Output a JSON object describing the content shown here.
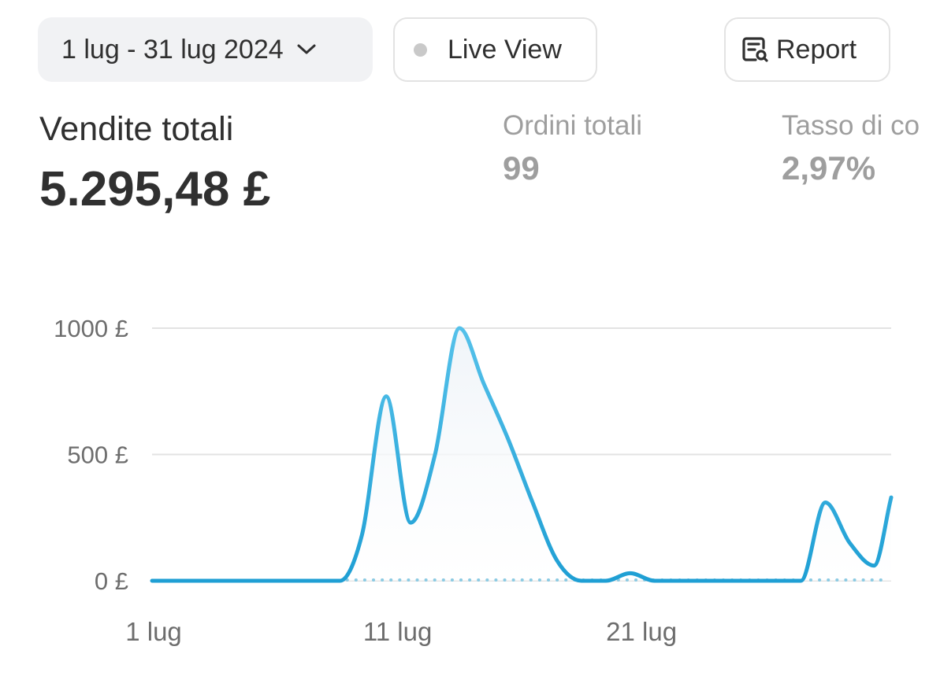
{
  "toolbar": {
    "date_range_label": "1 lug - 31 lug 2024",
    "live_view_label": "Live View",
    "report_label": "Report"
  },
  "metrics": [
    {
      "label": "Vendite totali",
      "value": "5.295,48 £"
    },
    {
      "label": "Ordini totali",
      "value": "99"
    },
    {
      "label": "Tasso di co",
      "value": "2,97%"
    }
  ],
  "colors": {
    "line": "#1f9fd4",
    "line_light": "#55c1ea",
    "comparison_dots": "#8ccbe3",
    "gridline": "#e3e3e3"
  },
  "chart_data": {
    "type": "line",
    "y_tick_labels": [
      "1000 £",
      "500 £",
      "0 £"
    ],
    "y_ticks": [
      1000,
      500,
      0
    ],
    "ylim": [
      0,
      1000
    ],
    "x_tick_labels": [
      "1 lug",
      "11 lug",
      "21 lug"
    ],
    "x_ticks": [
      1,
      11,
      21
    ],
    "xlim": [
      1,
      31.3
    ],
    "grid": true,
    "series": [
      {
        "x": [
          1,
          2,
          3,
          4,
          5,
          6,
          7,
          8,
          8.7,
          9.6,
          10.6,
          11.6,
          12.6,
          13.6,
          14.6,
          15.6,
          16.6,
          17.6,
          18.6,
          19.6,
          20.6,
          21.6,
          22.6,
          23.6,
          24.6,
          25.6,
          26.6,
          27.6,
          28.6,
          29.6,
          30.6,
          31.3
        ],
        "values": [
          0,
          0,
          0,
          0,
          0,
          0,
          0,
          0,
          0,
          180,
          730,
          230,
          500,
          1000,
          780,
          560,
          310,
          80,
          0,
          0,
          30,
          0,
          0,
          0,
          0,
          0,
          0,
          0,
          310,
          150,
          60,
          330
        ]
      }
    ],
    "comparison_series": {
      "x": [
        9,
        31
      ],
      "values": [
        0,
        0
      ]
    }
  }
}
